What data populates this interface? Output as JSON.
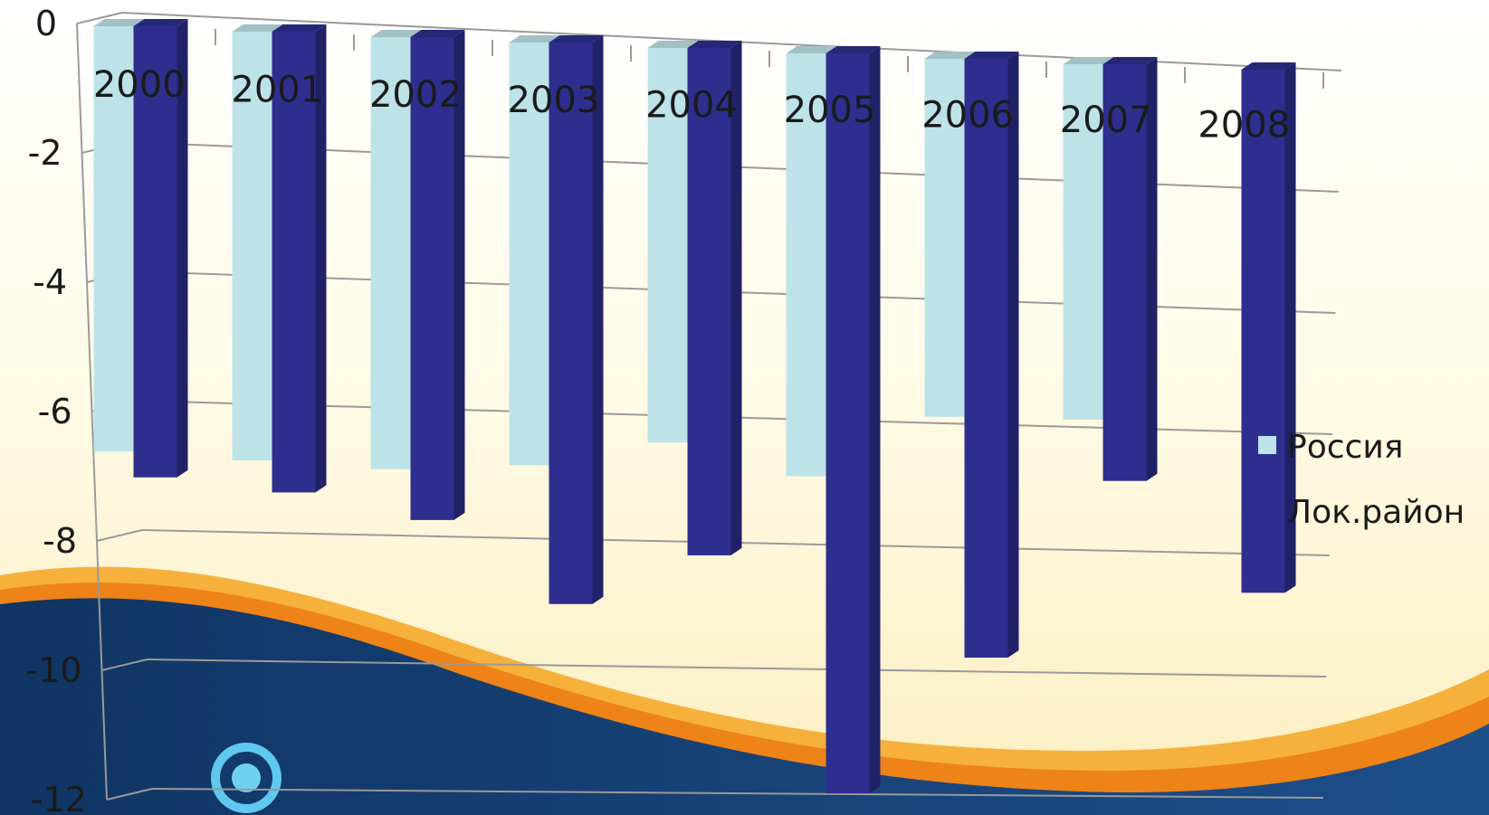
{
  "chart_data": {
    "type": "bar",
    "categories": [
      "2000",
      "2001",
      "2002",
      "2003",
      "2004",
      "2005",
      "2006",
      "2007",
      "2008"
    ],
    "series": [
      {
        "name": "Россия",
        "color": "#bde3e8",
        "values": [
          -6.6,
          -6.7,
          -6.8,
          -6.7,
          -6.3,
          -6.8,
          -5.8,
          -5.8,
          null
        ]
      },
      {
        "name": "Лок.район",
        "color": "#2e2e8f",
        "values": [
          -7.0,
          -7.2,
          -7.6,
          -8.9,
          -8.1,
          -11.9,
          -9.7,
          -6.8,
          -8.6
        ]
      }
    ],
    "yticks": [
      "0",
      "-2",
      "-4",
      "-6",
      "-8",
      "-10",
      "-12"
    ],
    "ylim": [
      -12,
      0
    ],
    "grid": true,
    "legend_position": "right",
    "background_colors": {
      "wave_navy": "#143e73",
      "wave_orange": "#f08a1c",
      "wave_cream": "#fdf3c6"
    }
  }
}
